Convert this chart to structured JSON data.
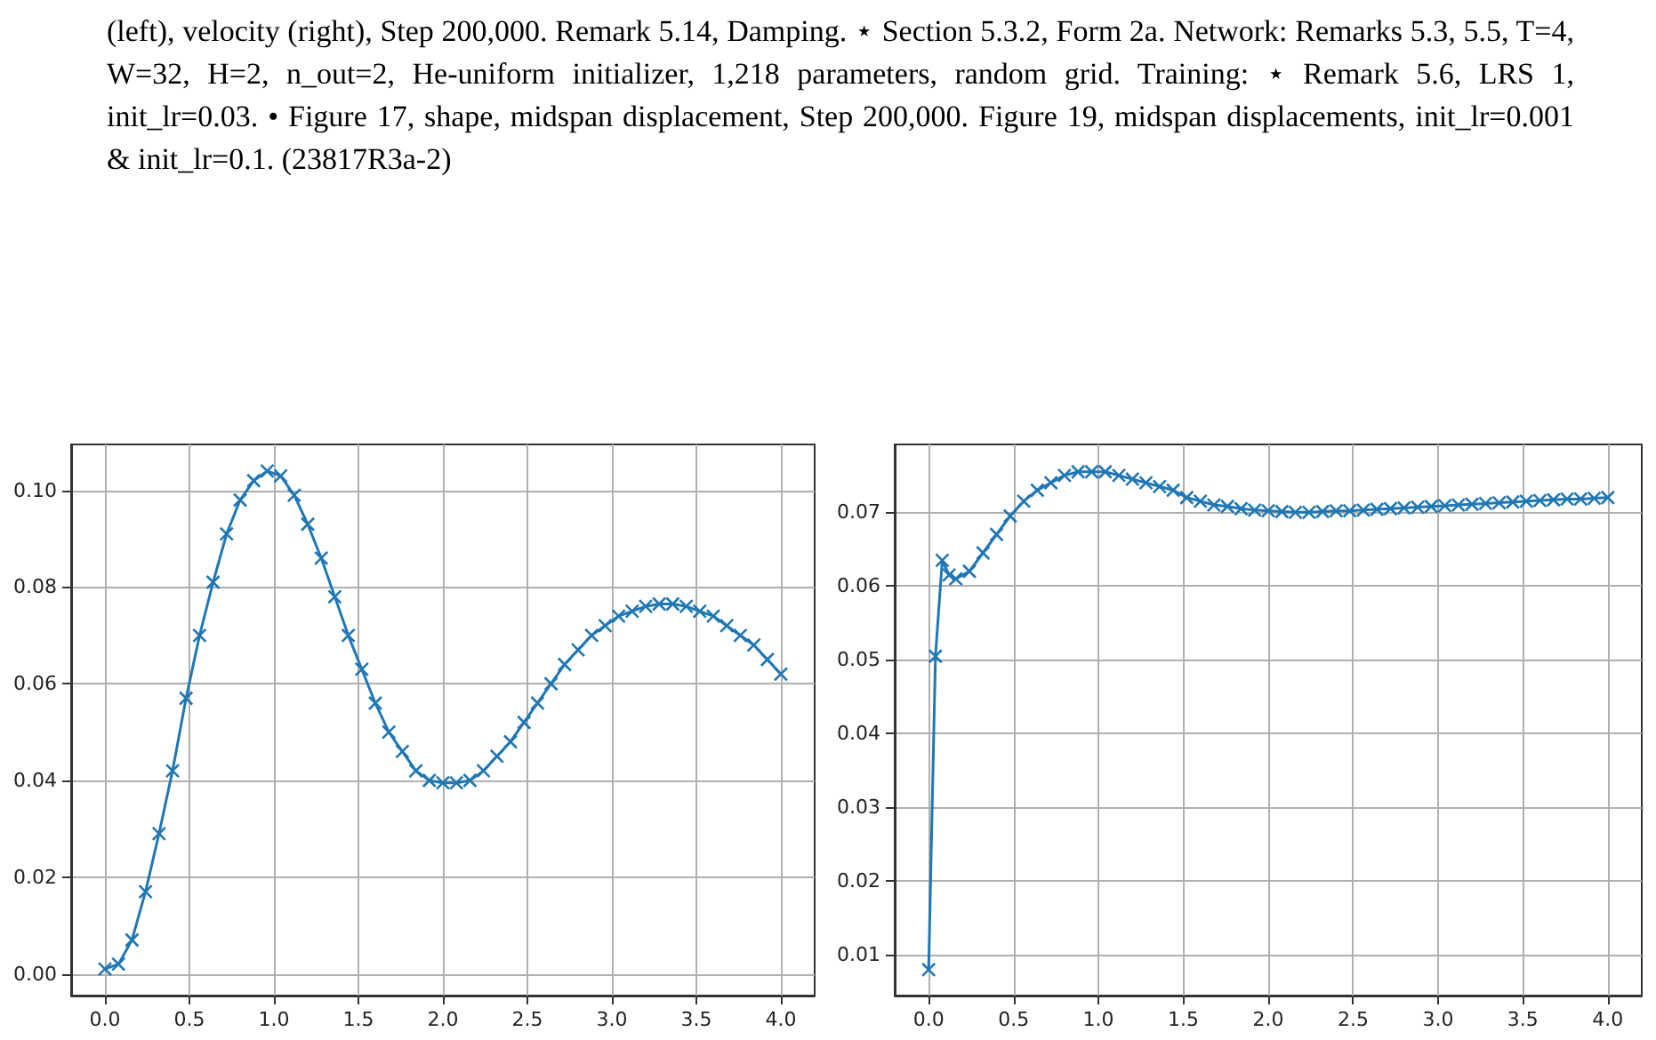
{
  "chart_data": [
    {
      "type": "line",
      "annotations": [
        "(left), velocity (right), Step 200,000. Remark 5.14, Damping. ⋆ Section 5.3.2, Form 2a. Network: Remarks 5.3, 5.5, T=4, W=32, H=2, n_out=2, He-uniform initializer, 1,218 parameters, random grid. Training: ⋆ Remark 5.6, LRS 1, init_lr=0.03. • Figure 17, shape, midspan displacement, Step 200,000. Figure 19, midspan displacements, init_lr=0.001 & init_lr=0.1. (23817R3a-2)"
      ],
      "series": [
        {
          "color": "#1f77b4",
          "x": [
            0,
            0.08,
            0.16,
            0.24,
            0.32,
            0.4,
            0.48,
            0.56,
            0.64,
            0.72,
            0.8,
            0.88,
            0.96,
            1.04,
            1.12,
            1.2,
            1.28,
            1.36,
            1.44,
            1.52,
            1.6,
            1.68,
            1.76,
            1.84,
            1.92,
            2.0,
            2.08,
            2.16,
            2.24,
            2.32,
            2.4,
            2.48,
            2.56,
            2.64,
            2.72,
            2.8,
            2.88,
            2.96,
            3.04,
            3.12,
            3.2,
            3.28,
            3.36,
            3.44,
            3.52,
            3.6,
            3.68,
            3.76,
            3.84,
            3.92,
            4.0
          ],
          "values": [
            0.001,
            0.002,
            0.007,
            0.017,
            0.029,
            0.042,
            0.057,
            0.07,
            0.081,
            0.091,
            0.098,
            0.102,
            0.104,
            0.103,
            0.099,
            0.093,
            0.086,
            0.078,
            0.07,
            0.063,
            0.056,
            0.05,
            0.046,
            0.042,
            0.04,
            0.0395,
            0.0395,
            0.04,
            0.042,
            0.045,
            0.048,
            0.052,
            0.056,
            0.06,
            0.064,
            0.067,
            0.07,
            0.072,
            0.074,
            0.075,
            0.076,
            0.0765,
            0.0765,
            0.076,
            0.075,
            0.074,
            0.072,
            0.07,
            0.068,
            0.065,
            0.062
          ]
        }
      ],
      "xlim": [
        -0.2,
        4.2
      ],
      "xticks": [
        {
          "value": 0,
          "label": "0.0"
        },
        {
          "value": 0.5,
          "label": "0.5"
        },
        {
          "value": 1,
          "label": "1.0"
        },
        {
          "value": 1.5,
          "label": "1.5"
        },
        {
          "value": 2,
          "label": "2.0"
        },
        {
          "value": 2.5,
          "label": "2.5"
        },
        {
          "value": 3,
          "label": "3.0"
        },
        {
          "value": 3.5,
          "label": "3.5"
        },
        {
          "value": 4,
          "label": "4.0"
        }
      ],
      "ylim": [
        -0.0045,
        0.1095
      ],
      "yticks": [
        {
          "value": 0,
          "label": "0.00"
        },
        {
          "value": 0.02,
          "label": "0.02"
        },
        {
          "value": 0.04,
          "label": "0.04"
        },
        {
          "value": 0.06,
          "label": "0.06"
        },
        {
          "value": 0.08,
          "label": "0.08"
        },
        {
          "value": 0.1,
          "label": "0.10"
        }
      ],
      "grid": true,
      "marker": "cross",
      "line_style": "solid"
    },
    {
      "type": "line",
      "series": [
        {
          "color": "#1f77b4",
          "x": [
            0,
            0.04,
            0.08,
            0.12,
            0.16,
            0.24,
            0.32,
            0.4,
            0.48,
            0.56,
            0.64,
            0.72,
            0.8,
            0.88,
            0.96,
            1.04,
            1.12,
            1.2,
            1.28,
            1.36,
            1.44,
            1.52,
            1.6,
            1.68,
            1.76,
            1.84,
            1.92,
            2.0,
            2.08,
            2.16,
            2.24,
            2.32,
            2.4,
            2.48,
            2.56,
            2.64,
            2.72,
            2.8,
            2.88,
            2.96,
            3.04,
            3.12,
            3.2,
            3.28,
            3.36,
            3.44,
            3.52,
            3.6,
            3.68,
            3.76,
            3.84,
            3.92,
            4.0
          ],
          "values": [
            0.008,
            0.0505,
            0.0635,
            0.0615,
            0.061,
            0.062,
            0.0645,
            0.067,
            0.0695,
            0.0715,
            0.073,
            0.074,
            0.075,
            0.0755,
            0.0755,
            0.0755,
            0.075,
            0.0745,
            0.074,
            0.0735,
            0.073,
            0.072,
            0.0715,
            0.071,
            0.0708,
            0.0705,
            0.0703,
            0.0702,
            0.0701,
            0.07,
            0.07,
            0.0701,
            0.0702,
            0.0702,
            0.0703,
            0.0704,
            0.0705,
            0.0706,
            0.0707,
            0.0708,
            0.0709,
            0.071,
            0.0711,
            0.0712,
            0.0713,
            0.0714,
            0.0715,
            0.0716,
            0.0717,
            0.0718,
            0.0718,
            0.0719,
            0.072
          ]
        }
      ],
      "xlim": [
        -0.2,
        4.2
      ],
      "xticks": [
        {
          "value": 0,
          "label": "0.0"
        },
        {
          "value": 0.5,
          "label": "0.5"
        },
        {
          "value": 1,
          "label": "1.0"
        },
        {
          "value": 1.5,
          "label": "1.5"
        },
        {
          "value": 2,
          "label": "2.0"
        },
        {
          "value": 2.5,
          "label": "2.5"
        },
        {
          "value": 3,
          "label": "3.0"
        },
        {
          "value": 3.5,
          "label": "3.5"
        },
        {
          "value": 4,
          "label": "4.0"
        }
      ],
      "ylim": [
        0.0045,
        0.0792
      ],
      "yticks": [
        {
          "value": 0.01,
          "label": "0.01"
        },
        {
          "value": 0.02,
          "label": "0.02"
        },
        {
          "value": 0.03,
          "label": "0.03"
        },
        {
          "value": 0.04,
          "label": "0.04"
        },
        {
          "value": 0.05,
          "label": "0.05"
        },
        {
          "value": 0.06,
          "label": "0.06"
        },
        {
          "value": 0.07,
          "label": "0.07"
        }
      ],
      "grid": true,
      "marker": "cross",
      "line_style": "solid"
    }
  ]
}
